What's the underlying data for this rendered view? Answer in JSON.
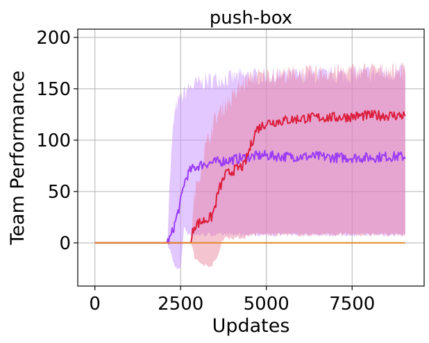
{
  "chart_data": {
    "type": "line",
    "title": "push-box",
    "xlabel": "Updates",
    "ylabel": "Team Performance",
    "xlim": [
      -500,
      9600
    ],
    "ylim": [
      -42,
      208
    ],
    "xticks": [
      0,
      2500,
      5000,
      7500
    ],
    "xtick_labels": [
      "0",
      "2500",
      "5000",
      "7500"
    ],
    "yticks": [
      0,
      50,
      100,
      150,
      200
    ],
    "ytick_labels": [
      "0",
      "50",
      "100",
      "150",
      "200"
    ],
    "grid": true,
    "legend": "none",
    "series": [
      {
        "color": "#9b3cf5",
        "band_color": "#cc99ff",
        "band_opacity": 0.55,
        "x": [
          0,
          2100,
          2200,
          2300,
          2400,
          2500,
          2600,
          2700,
          2800,
          3000,
          3200,
          3400,
          3600,
          3800,
          4000,
          4200,
          4400,
          4600,
          4800,
          5000,
          5500,
          6000,
          6500,
          7000,
          7500,
          8000,
          8500,
          9050
        ],
        "mean": [
          0,
          0,
          5,
          15,
          27,
          40,
          58,
          66,
          71,
          75,
          77,
          78,
          79,
          80,
          81,
          82,
          83,
          84,
          85,
          85,
          84,
          84,
          84,
          83,
          83,
          83,
          84,
          84
        ],
        "lower": [
          0,
          0,
          -8,
          -20,
          -26,
          -25,
          15,
          10,
          8,
          8,
          8,
          8,
          8,
          8,
          8,
          8,
          8,
          8,
          8,
          8,
          8,
          8,
          8,
          8,
          8,
          8,
          8,
          8
        ],
        "upper": [
          0,
          0,
          70,
          120,
          135,
          140,
          145,
          150,
          152,
          155,
          157,
          158,
          160,
          160,
          160,
          162,
          162,
          162,
          162,
          162,
          162,
          163,
          163,
          163,
          164,
          165,
          165,
          165
        ]
      },
      {
        "color": "#dc1e3c",
        "band_color": "#e87d9a",
        "band_opacity": 0.45,
        "x": [
          0,
          2800,
          2850,
          2900,
          3000,
          3200,
          3400,
          3500,
          3600,
          3700,
          3800,
          4000,
          4200,
          4350,
          4500,
          4700,
          5000,
          5500,
          6000,
          6500,
          7000,
          7500,
          8000,
          8500,
          9050
        ],
        "mean": [
          0,
          0,
          10,
          17,
          19,
          22,
          25,
          35,
          50,
          58,
          66,
          70,
          73,
          75,
          90,
          110,
          117,
          119,
          121,
          122,
          122,
          123,
          124,
          124,
          124
        ],
        "lower": [
          0,
          0,
          -5,
          -15,
          -18,
          -22,
          -22,
          -18,
          -12,
          2,
          5,
          5,
          5,
          5,
          8,
          8,
          8,
          8,
          8,
          8,
          8,
          8,
          8,
          8,
          8
        ],
        "upper": [
          0,
          0,
          20,
          45,
          60,
          90,
          110,
          120,
          125,
          130,
          135,
          140,
          150,
          155,
          160,
          162,
          163,
          164,
          165,
          165,
          166,
          167,
          168,
          168,
          168
        ]
      },
      {
        "color": "#e0882a",
        "x": [
          0,
          9050
        ],
        "mean": [
          0,
          0
        ]
      }
    ]
  }
}
